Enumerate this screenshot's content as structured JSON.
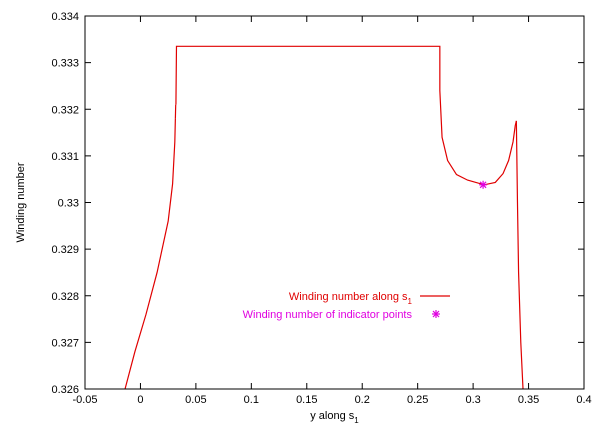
{
  "chart_data": {
    "type": "line",
    "title": "",
    "xlabel": "y along s",
    "xlabel_subscript": "1",
    "ylabel": "Winding number",
    "xlim": [
      -0.05,
      0.4
    ],
    "ylim": [
      0.326,
      0.334
    ],
    "x_ticks": [
      "-0.05",
      "0",
      "0.05",
      "0.1",
      "0.15",
      "0.2",
      "0.25",
      "0.3",
      "0.35",
      "0.4"
    ],
    "x_tick_values": [
      -0.05,
      0,
      0.05,
      0.1,
      0.15,
      0.2,
      0.25,
      0.3,
      0.35,
      0.4
    ],
    "y_ticks": [
      "0.326",
      "0.327",
      "0.328",
      "0.329",
      "0.33",
      "0.331",
      "0.332",
      "0.333",
      "0.334"
    ],
    "y_tick_values": [
      0.326,
      0.327,
      0.328,
      0.329,
      0.33,
      0.331,
      0.332,
      0.333,
      0.334
    ],
    "grid": false,
    "legend_position": "center",
    "series": [
      {
        "name": "Winding number along s",
        "name_subscript": "1",
        "color": "#e00000",
        "style": "line",
        "segments": [
          [
            [
              -0.015,
              0.3259
            ],
            [
              -0.005,
              0.3268
            ],
            [
              0.005,
              0.3276
            ],
            [
              0.015,
              0.3285
            ],
            [
              0.025,
              0.3296
            ],
            [
              0.029,
              0.3304
            ],
            [
              0.031,
              0.3313
            ],
            [
              0.0315,
              0.3318
            ]
          ],
          [
            [
              0.0315,
              0.3318
            ],
            [
              0.0318,
              0.3321
            ]
          ],
          [
            [
              0.032,
              0.3321
            ],
            [
              0.0325,
              0.33335
            ],
            [
              0.27,
              0.33335
            ],
            [
              0.27,
              0.3324
            ],
            [
              0.272,
              0.3314
            ],
            [
              0.277,
              0.3309
            ],
            [
              0.285,
              0.3306
            ],
            [
              0.295,
              0.33048
            ],
            [
              0.31,
              0.33038
            ],
            [
              0.32,
              0.33043
            ],
            [
              0.327,
              0.33062
            ],
            [
              0.332,
              0.3309
            ],
            [
              0.336,
              0.3313
            ],
            [
              0.338,
              0.33165
            ],
            [
              0.339,
              0.33175
            ]
          ],
          [
            [
              0.339,
              0.33175
            ],
            [
              0.34,
              0.33
            ],
            [
              0.341,
              0.3285
            ],
            [
              0.343,
              0.327
            ],
            [
              0.345,
              0.326
            ]
          ]
        ]
      },
      {
        "name": "Winding number of indicator points",
        "color": "#e000e0",
        "style": "points",
        "points": [
          [
            0.309,
            0.33038
          ]
        ]
      }
    ]
  }
}
